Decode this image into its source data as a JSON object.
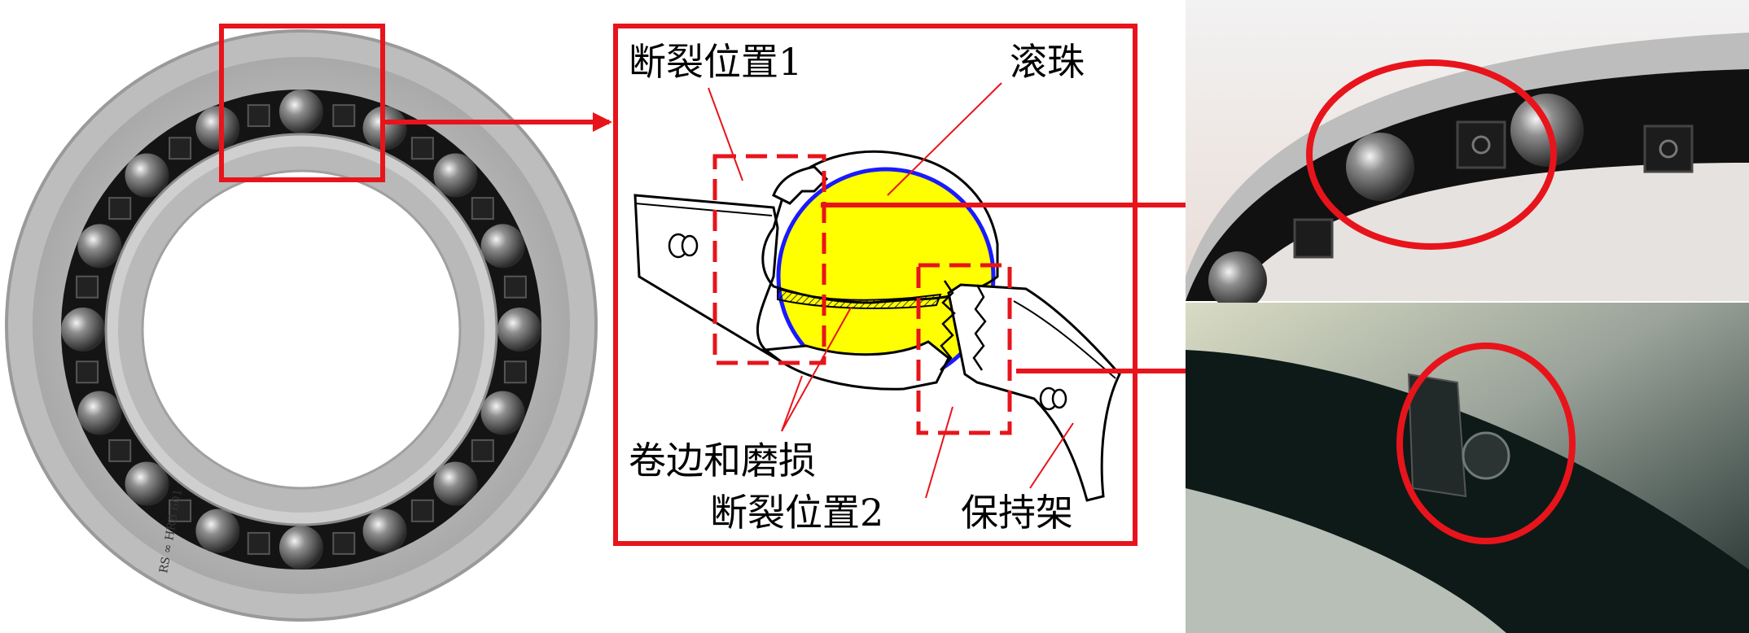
{
  "figure": {
    "labels": {
      "fracture_1": "断裂位置1",
      "rolling_ball": "滚珠",
      "curling_wear": "卷边和磨损",
      "fracture_2": "断裂位置2",
      "cage": "保持架"
    },
    "bearing_marking": "RS ∞ HRB 601",
    "colors": {
      "annotation_red": "#e8141b",
      "ball_yellow": "#ffff00",
      "ball_outline_blue": "#1a1aff",
      "bearing_steel": "#c7c7c7",
      "bearing_seal_black": "#151515",
      "photo_bg_black": "#0d1412"
    },
    "panels": [
      "bearing-photo",
      "cage-schematic",
      "closeup-photo-top",
      "closeup-photo-bottom"
    ]
  }
}
